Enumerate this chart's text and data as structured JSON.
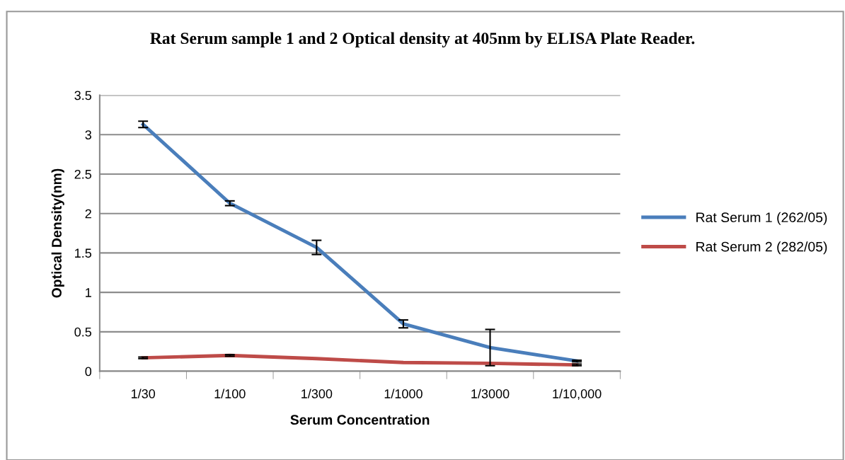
{
  "chart_data": {
    "type": "line",
    "title": "Rat Serum sample 1 and 2 Optical density at 405nm by ELISA Plate Reader.",
    "xlabel": "Serum Concentration",
    "ylabel": "Optical Density(nm)",
    "categories": [
      "1/30",
      "1/100",
      "1/300",
      "1/1000",
      "1/3000",
      "1/10,000"
    ],
    "series": [
      {
        "name": "Rat Serum 1 (262/05)",
        "color": "#4a7ebb",
        "values": [
          3.13,
          2.13,
          1.57,
          0.6,
          0.3,
          0.13
        ],
        "errors": [
          0.04,
          0.03,
          0.09,
          0.05,
          0.23,
          0.01
        ]
      },
      {
        "name": "Rat Serum 2 (282/05)",
        "color": "#be4b48",
        "values": [
          0.17,
          0.2,
          0.16,
          0.11,
          0.1,
          0.08
        ],
        "errors": [
          0.01,
          0.01,
          null,
          null,
          null,
          0.01
        ]
      }
    ],
    "ylim": [
      0,
      3.5
    ],
    "yticks": [
      0,
      0.5,
      1,
      1.5,
      2,
      2.5,
      3,
      3.5
    ],
    "grid": "y",
    "legend": "right",
    "marker": "none",
    "line_style": "solid"
  }
}
